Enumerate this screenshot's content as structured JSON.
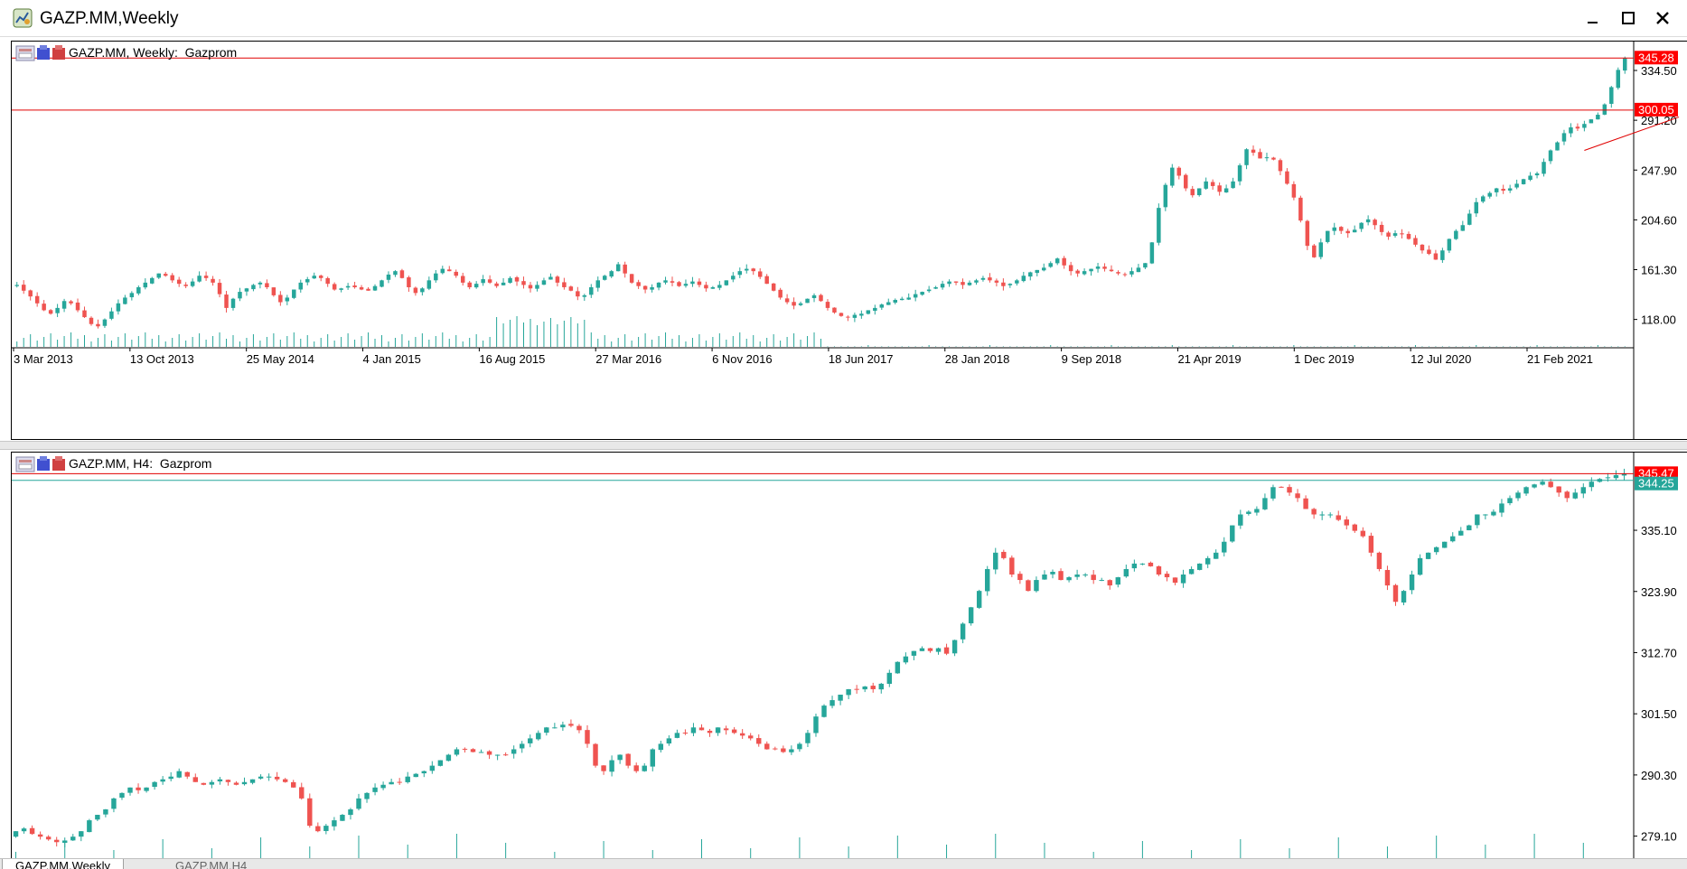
{
  "window": {
    "title": "GAZP.MM,Weekly",
    "minimize_icon": "minimize-icon",
    "maximize_icon": "maximize-icon",
    "close_icon": "close-icon"
  },
  "tabs": [
    {
      "label": "GAZP.MM,Weekly",
      "active": true
    },
    {
      "label": "GAZP.MM,H4",
      "active": false
    }
  ],
  "colors": {
    "bull": "#26a69a",
    "bear": "#ef5350",
    "level_line": "#e00000",
    "price_label_bg": "#ff0000",
    "ask_line": "#26a69a",
    "axis": "#000000"
  },
  "chart_data": [
    {
      "type": "candlestick",
      "name": "GAZP.MM, Weekly:  Gazprom",
      "ylim": [
        96.5,
        356.5
      ],
      "yticks": [
        "334.50",
        "291.20",
        "247.90",
        "204.60",
        "161.30",
        "118.00"
      ],
      "xticks": [
        "3 Mar 2013",
        "13 Oct 2013",
        "25 May 2014",
        "4 Jan 2015",
        "16 Aug 2015",
        "27 Mar 2016",
        "6 Nov 2016",
        "18 Jun 2017",
        "28 Jan 2018",
        "9 Sep 2018",
        "21 Apr 2019",
        "1 Dec 2019",
        "12 Jul 2020",
        "21 Feb 2021"
      ],
      "close_series": [
        148,
        143,
        138,
        132,
        126,
        123,
        128,
        134,
        132,
        126,
        120,
        114,
        112,
        118,
        125,
        132,
        137,
        141,
        146,
        150,
        154,
        158,
        156,
        152,
        149,
        147,
        151,
        156,
        154,
        150,
        140,
        128,
        136,
        142,
        145,
        148,
        150,
        146,
        139,
        133,
        137,
        144,
        150,
        153,
        156,
        154,
        149,
        144,
        145,
        147,
        146,
        144,
        143,
        147,
        152,
        157,
        160,
        154,
        146,
        141,
        145,
        152,
        158,
        162,
        160,
        156,
        150,
        146,
        149,
        153,
        150,
        147,
        150,
        154,
        151,
        148,
        145,
        148,
        152,
        155,
        150,
        146,
        143,
        138,
        139,
        146,
        152,
        156,
        160,
        166,
        158,
        150,
        147,
        144,
        146,
        150,
        152,
        150,
        147,
        149,
        151,
        148,
        145,
        146,
        148,
        152,
        156,
        160,
        162,
        160,
        155,
        149,
        143,
        137,
        133,
        130,
        132,
        136,
        139,
        134,
        128,
        124,
        121,
        120,
        122,
        123,
        126,
        128,
        131,
        133,
        135,
        136,
        137,
        140,
        142,
        144,
        146,
        149,
        151,
        150,
        148,
        150,
        152,
        154,
        152,
        150,
        147,
        149,
        152,
        156,
        159,
        161,
        163,
        167,
        171,
        165,
        160,
        158,
        160,
        162,
        164,
        162,
        160,
        158,
        157,
        160,
        163,
        167,
        185,
        215,
        235,
        250,
        243,
        232,
        226,
        232,
        238,
        234,
        229,
        232,
        238,
        252,
        266,
        263,
        258,
        259,
        257,
        247,
        236,
        224,
        204,
        182,
        172,
        185,
        195,
        198,
        195,
        193,
        196,
        202,
        205,
        200,
        194,
        190,
        193,
        192,
        188,
        183,
        178,
        175,
        170,
        178,
        188,
        195,
        200,
        210,
        220,
        225,
        228,
        232,
        230,
        232,
        236,
        240,
        243,
        245,
        255,
        265,
        272,
        280,
        285,
        284,
        288,
        292,
        296,
        305,
        320,
        335,
        345
      ],
      "price_labels": [
        "345.28",
        "300.05"
      ],
      "level_lines": [
        345.28,
        300.05
      ],
      "trendline": {
        "from_index": 232,
        "from_price": 265,
        "to_index": 246,
        "to_price": 294
      }
    },
    {
      "type": "candlestick",
      "name": "GAZP.MM, H4:  Gazprom",
      "ylim": [
        274.9,
        349.0
      ],
      "yticks": [
        "335.10",
        "323.90",
        "312.70",
        "301.50",
        "290.30",
        "279.10"
      ],
      "xticks": [],
      "close_series": [
        280,
        280.5,
        279.5,
        279,
        278.5,
        278,
        278.3,
        279,
        280,
        282,
        283,
        284,
        286,
        287,
        288,
        287.5,
        288,
        289,
        289.5,
        290,
        291,
        290,
        289,
        288.5,
        289,
        289.5,
        289,
        288.5,
        289,
        289.5,
        290,
        290,
        289.5,
        289,
        288,
        286,
        281,
        280,
        281,
        282,
        283,
        284,
        286,
        287,
        288,
        288.5,
        289,
        289,
        290,
        290.5,
        291,
        292,
        293,
        294,
        295,
        295,
        294.5,
        294.5,
        294,
        294,
        294,
        295,
        296,
        297,
        298,
        299,
        299,
        299.5,
        299.3,
        298.5,
        296,
        292,
        291,
        293,
        294,
        292,
        291,
        292,
        295,
        296,
        297,
        298,
        298,
        299,
        298.5,
        298,
        299,
        298.5,
        298,
        297.5,
        297,
        296,
        295,
        295,
        294.5,
        295,
        296,
        298,
        301,
        303,
        304,
        305,
        306,
        306,
        306.5,
        306,
        307,
        309,
        311,
        312,
        313,
        313.5,
        313,
        313.5,
        312.5,
        315,
        318,
        321,
        324,
        328,
        331,
        330,
        327,
        326,
        324,
        326,
        327,
        327.5,
        326,
        326.5,
        327,
        327,
        326,
        326,
        325,
        326.5,
        328,
        329,
        329,
        328.5,
        327,
        326.5,
        325.5,
        327,
        328,
        329,
        330,
        331,
        333,
        336,
        338,
        338.5,
        339,
        341,
        343,
        343,
        342,
        341,
        339,
        338,
        338,
        338,
        337,
        336,
        335,
        334,
        331,
        328,
        325,
        322,
        324,
        327,
        330,
        331,
        332,
        333,
        334,
        335,
        336,
        338,
        338,
        338.5,
        340,
        341,
        342,
        343,
        343.5,
        344,
        343,
        342,
        341,
        342,
        343,
        344,
        344.5,
        344.8,
        345.2,
        345.47
      ],
      "price_labels": [
        "345.47",
        "344.25"
      ],
      "level_lines": [
        345.47
      ],
      "ask_line": 344.25
    }
  ]
}
